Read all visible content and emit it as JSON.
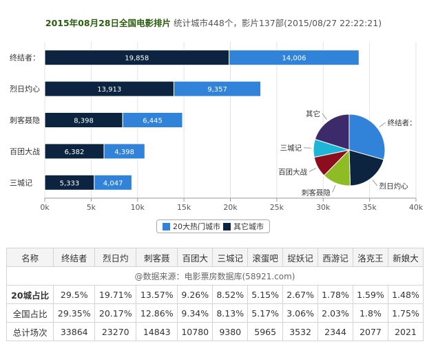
{
  "title": {
    "date_text": "2015年08月28日全国电影排片",
    "stats_text": " 统计城市448个，影片137部(2015/08/27 22:22:21)"
  },
  "colors": {
    "series_top20": "#3183d9",
    "series_other": "#0c2440",
    "pie_terminator": "#3183d9",
    "pie_lieri": "#0c2440",
    "pie_cike": "#8fbc25",
    "pie_baituan": "#8b0d1e",
    "pie_sancheng": "#1fb5d8",
    "pie_other": "#3c2a6b"
  },
  "chart_data": [
    {
      "type": "bar",
      "orientation": "horizontal",
      "stacked": true,
      "categories": [
        "终结者：",
        "烈日灼心",
        "刺客聂隐",
        "百团大战",
        "三城记"
      ],
      "series": [
        {
          "name": "其它城市",
          "values": [
            19858,
            13913,
            8398,
            6382,
            5333
          ]
        },
        {
          "name": "20大热门城市",
          "values": [
            14006,
            9357,
            6445,
            4398,
            4047
          ]
        }
      ],
      "xlim": [
        0,
        40000
      ],
      "xticks": [
        0,
        5000,
        10000,
        15000,
        20000,
        25000,
        30000,
        35000,
        40000
      ],
      "xtick_labels": [
        "0k",
        "5k",
        "10k",
        "15k",
        "20k",
        "25k",
        "30k",
        "35k",
        "40k"
      ],
      "legend": {
        "position": "bottom",
        "entries": [
          "20大热门城市",
          "其它城市"
        ]
      },
      "grid": true
    },
    {
      "type": "pie",
      "labels": [
        "终结者：",
        "烈日灼心",
        "刺客聂隐",
        "百团大战",
        "三城记",
        "其它"
      ],
      "values": [
        29.35,
        20.17,
        12.86,
        9.34,
        8.13,
        20.15
      ]
    }
  ],
  "table": {
    "headers": [
      "名称",
      "终结者",
      "烈日灼",
      "刺客聂",
      "百团大",
      "三城记",
      "滚蛋吧",
      "捉妖记",
      "西游记",
      "洛克王",
      "新娘大"
    ],
    "source_text": "@数据来源：电影票房数据库(58921.com)",
    "rows": [
      {
        "label": "20城占比",
        "values": [
          "29.5%",
          "19.71%",
          "13.57%",
          "9.26%",
          "8.52%",
          "5.15%",
          "2.67%",
          "1.78%",
          "1.59%",
          "1.48%"
        ]
      },
      {
        "label": "全国占比",
        "values": [
          "29.35%",
          "20.17%",
          "12.86%",
          "9.34%",
          "8.13%",
          "5.17%",
          "3.06%",
          "2.03%",
          "1.8%",
          "1.75%"
        ]
      },
      {
        "label": "总计场次",
        "values": [
          "33864",
          "23270",
          "14843",
          "10780",
          "9380",
          "5965",
          "3532",
          "2344",
          "2077",
          "2021"
        ]
      }
    ]
  }
}
